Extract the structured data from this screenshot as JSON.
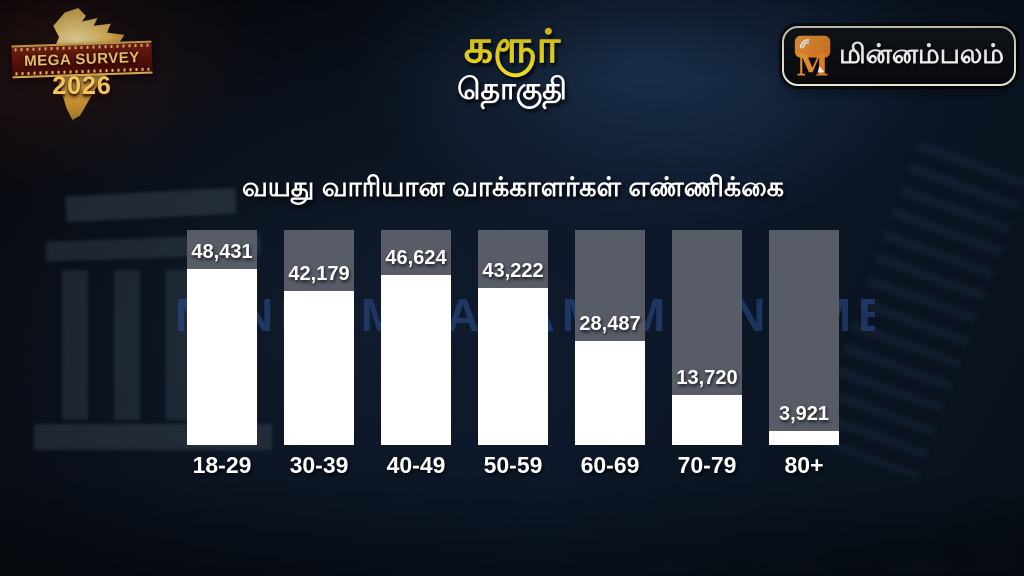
{
  "badge": {
    "title": "MEGA SURVEY",
    "year": "2026"
  },
  "header": {
    "title": "கரூர்",
    "subtitle": "தொகுதி"
  },
  "logo": {
    "name": "மின்னம்பலம்"
  },
  "watermark": "MINNAMBALAM MINNAMBALAM",
  "chart_data": {
    "type": "bar",
    "title": "வயது வாரியான வாக்காளர்கள் எண்ணிக்கை",
    "categories": [
      "18-29",
      "30-39",
      "40-49",
      "50-59",
      "60-69",
      "70-79",
      "80+"
    ],
    "values": [
      48431,
      42179,
      46624,
      43222,
      28487,
      13720,
      3921
    ],
    "value_labels": [
      "48,431",
      "42,179",
      "46,624",
      "43,222",
      "28,487",
      "13,720",
      "3,921"
    ],
    "xlabel": "",
    "ylabel": "",
    "ylim": [
      0,
      59000
    ],
    "grid": false,
    "legend": "none",
    "colors": {
      "bar_fill": "#ffffff",
      "bar_track": "#575c67",
      "value_label": "#ffffff",
      "category_label": "#ffffff"
    }
  },
  "accent_colors": {
    "title_yellow": "#f5e01c",
    "logo_orange": "#f08a2a",
    "badge_gold": "#f0c75e",
    "watermark_blue": "#2d549b",
    "background_navy": "#0c1728"
  }
}
